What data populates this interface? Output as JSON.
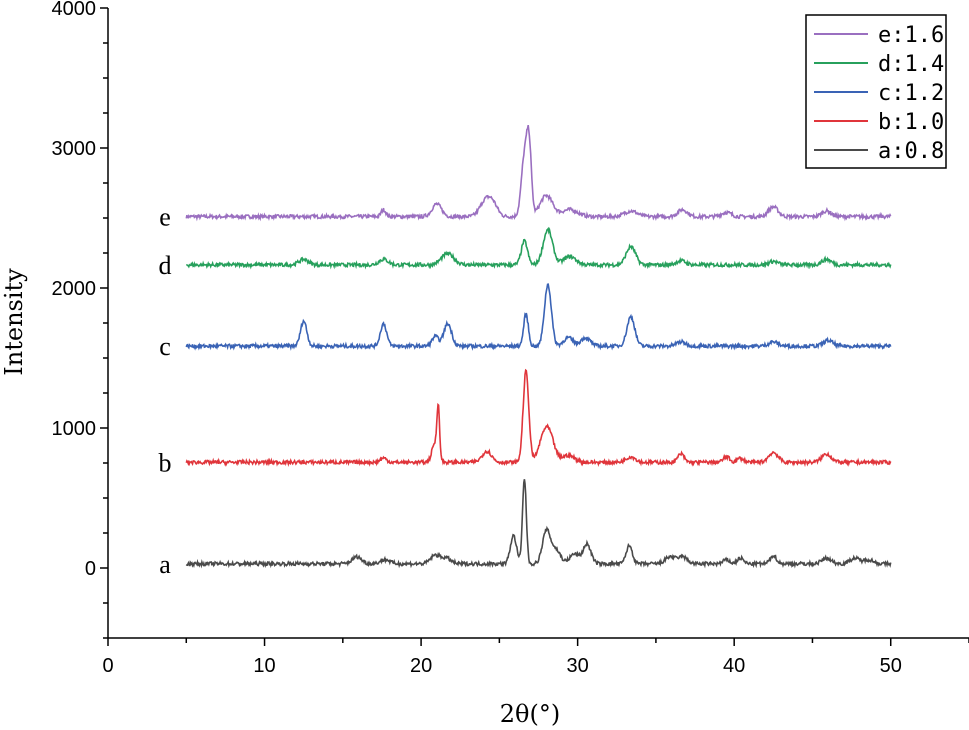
{
  "chart_data": {
    "type": "line",
    "title": "",
    "xlabel": "2θ(°)",
    "ylabel": "Intensity",
    "xlim": [
      0,
      55
    ],
    "ylim": [
      -500,
      4000
    ],
    "xticks": [
      0,
      10,
      20,
      30,
      40,
      50
    ],
    "yticks": [
      0,
      1000,
      2000,
      3000,
      4000
    ],
    "grid": false,
    "legend_position": "top-right",
    "series": [
      {
        "name": "e:1.6",
        "label": "e",
        "color": "#9a6fc0",
        "baseline": 2510,
        "peaks": [
          [
            17.6,
            50,
            0.15
          ],
          [
            21.0,
            90,
            0.3
          ],
          [
            24.1,
            110,
            0.35
          ],
          [
            24.6,
            80,
            0.3
          ],
          [
            26.6,
            420,
            0.2
          ],
          [
            26.9,
            470,
            0.15
          ],
          [
            28.0,
            150,
            0.4
          ],
          [
            29.5,
            50,
            0.5
          ],
          [
            33.4,
            40,
            0.4
          ],
          [
            36.7,
            50,
            0.3
          ],
          [
            39.5,
            30,
            0.3
          ],
          [
            42.5,
            70,
            0.3
          ],
          [
            45.9,
            40,
            0.3
          ]
        ]
      },
      {
        "name": "d:1.4",
        "label": "d",
        "color": "#27a05c",
        "baseline": 2165,
        "peaks": [
          [
            12.5,
            40,
            0.3
          ],
          [
            17.6,
            40,
            0.3
          ],
          [
            21.7,
            80,
            0.4
          ],
          [
            26.6,
            170,
            0.2
          ],
          [
            28.1,
            250,
            0.3
          ],
          [
            29.5,
            60,
            0.4
          ],
          [
            33.4,
            130,
            0.3
          ],
          [
            36.6,
            30,
            0.3
          ],
          [
            42.5,
            25,
            0.3
          ],
          [
            45.9,
            40,
            0.3
          ]
        ]
      },
      {
        "name": "c:1.2",
        "label": "c",
        "color": "#3a63b5",
        "baseline": 1585,
        "peaks": [
          [
            12.5,
            180,
            0.2
          ],
          [
            17.6,
            160,
            0.2
          ],
          [
            20.9,
            70,
            0.2
          ],
          [
            21.7,
            160,
            0.25
          ],
          [
            26.7,
            230,
            0.15
          ],
          [
            28.1,
            440,
            0.22
          ],
          [
            29.4,
            60,
            0.3
          ],
          [
            30.5,
            60,
            0.3
          ],
          [
            33.4,
            210,
            0.25
          ],
          [
            36.6,
            30,
            0.3
          ],
          [
            42.5,
            30,
            0.3
          ],
          [
            46.0,
            40,
            0.3
          ]
        ]
      },
      {
        "name": "b:1.0",
        "label": "b",
        "color": "#e0353b",
        "baseline": 755,
        "peaks": [
          [
            17.6,
            30,
            0.2
          ],
          [
            20.9,
            140,
            0.2
          ],
          [
            21.1,
            340,
            0.08
          ],
          [
            24.2,
            80,
            0.3
          ],
          [
            26.7,
            650,
            0.18
          ],
          [
            27.9,
            200,
            0.35
          ],
          [
            28.3,
            100,
            0.3
          ],
          [
            29.4,
            50,
            0.4
          ],
          [
            33.4,
            40,
            0.3
          ],
          [
            36.6,
            60,
            0.2
          ],
          [
            39.5,
            40,
            0.2
          ],
          [
            40.4,
            30,
            0.2
          ],
          [
            42.5,
            70,
            0.3
          ],
          [
            45.9,
            60,
            0.3
          ]
        ]
      },
      {
        "name": "a:0.8",
        "label": "a",
        "color": "#4a4a4a",
        "baseline": 30,
        "peaks": [
          [
            15.9,
            50,
            0.3
          ],
          [
            17.7,
            30,
            0.3
          ],
          [
            20.9,
            60,
            0.3
          ],
          [
            21.6,
            40,
            0.3
          ],
          [
            25.9,
            200,
            0.2
          ],
          [
            26.6,
            610,
            0.12
          ],
          [
            28.0,
            230,
            0.25
          ],
          [
            28.6,
            100,
            0.3
          ],
          [
            29.8,
            70,
            0.3
          ],
          [
            30.6,
            140,
            0.25
          ],
          [
            33.3,
            130,
            0.2
          ],
          [
            35.9,
            50,
            0.3
          ],
          [
            36.7,
            50,
            0.3
          ],
          [
            39.5,
            30,
            0.2
          ],
          [
            40.4,
            40,
            0.2
          ],
          [
            42.5,
            60,
            0.2
          ],
          [
            45.9,
            40,
            0.3
          ],
          [
            47.7,
            40,
            0.3
          ],
          [
            48.6,
            30,
            0.3
          ]
        ]
      }
    ]
  }
}
